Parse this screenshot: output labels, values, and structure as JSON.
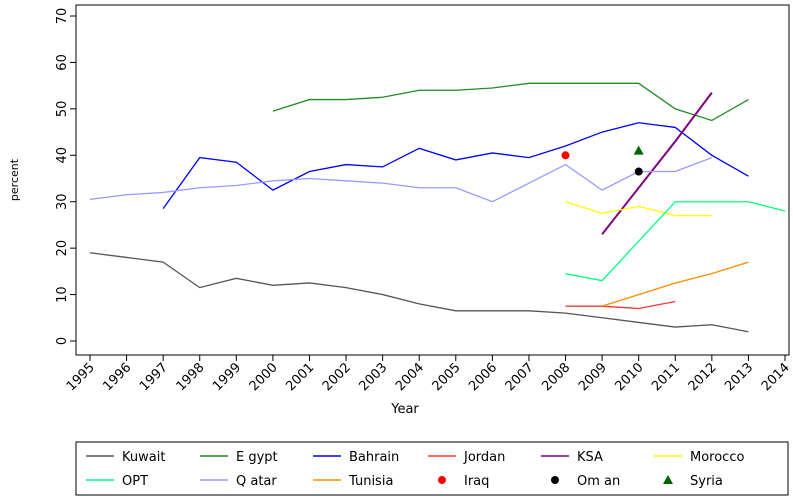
{
  "chart_data": {
    "type": "line",
    "x_label": "Year",
    "y_label": "percent",
    "x": [
      1995,
      1996,
      1997,
      1998,
      1999,
      2000,
      2001,
      2002,
      2003,
      2004,
      2005,
      2006,
      2007,
      2008,
      2009,
      2010,
      2011,
      2012,
      2013,
      2014
    ],
    "xlim": [
      1995,
      2014
    ],
    "xticks": [
      1995,
      1996,
      1997,
      1998,
      1999,
      2000,
      2001,
      2002,
      2003,
      2004,
      2005,
      2006,
      2007,
      2008,
      2009,
      2010,
      2011,
      2012,
      2013,
      2014
    ],
    "ylim": [
      0,
      70
    ],
    "yticks": [
      0,
      10,
      20,
      30,
      40,
      50,
      60,
      70
    ],
    "series": [
      {
        "name": "Kuwait",
        "color": "#555555",
        "marker": "line",
        "values": [
          19,
          18,
          17,
          11.5,
          13.5,
          12,
          12.5,
          11.5,
          10,
          8,
          6.5,
          6.5,
          6.5,
          6,
          5,
          4,
          3,
          3.5,
          2,
          null
        ]
      },
      {
        "name": "E gypt",
        "color": "#228b22",
        "marker": "line",
        "values": [
          null,
          null,
          null,
          null,
          null,
          49.5,
          52,
          52,
          52.5,
          54,
          54,
          54.5,
          55.5,
          55.5,
          55.5,
          55.5,
          50,
          47.5,
          52,
          null
        ]
      },
      {
        "name": "Bahrain",
        "color": "#0000ff",
        "marker": "line",
        "values": [
          null,
          null,
          28.5,
          39.5,
          38.5,
          32.5,
          36.5,
          38,
          37.5,
          41.5,
          39,
          40.5,
          39.5,
          42,
          45,
          47,
          46,
          40,
          35.5,
          null
        ]
      },
      {
        "name": "Jordan",
        "color": "#ff3333",
        "marker": "line",
        "values": [
          null,
          null,
          null,
          null,
          null,
          null,
          null,
          null,
          null,
          null,
          null,
          null,
          null,
          7.5,
          7.5,
          7,
          8.5,
          null,
          null,
          null
        ]
      },
      {
        "name": "KSA",
        "color": "#800080",
        "marker": "line",
        "values": [
          null,
          null,
          null,
          null,
          null,
          null,
          null,
          null,
          null,
          null,
          null,
          null,
          null,
          null,
          23,
          33,
          43,
          53.5,
          null,
          null
        ]
      },
      {
        "name": "Morocco",
        "color": "#ffff00",
        "marker": "line",
        "values": [
          null,
          null,
          null,
          null,
          null,
          null,
          null,
          null,
          null,
          null,
          null,
          null,
          null,
          30,
          27.5,
          29,
          27,
          27,
          null,
          null
        ]
      },
      {
        "name": "OPT",
        "color": "#00ff7f",
        "marker": "line",
        "values": [
          null,
          null,
          null,
          null,
          null,
          null,
          null,
          null,
          null,
          null,
          null,
          null,
          null,
          14.5,
          13,
          21.5,
          30,
          30,
          30,
          28
        ]
      },
      {
        "name": "Q atar",
        "color": "#9999ff",
        "marker": "line",
        "values": [
          30.5,
          31.5,
          32,
          33,
          33.5,
          34.5,
          35,
          34.5,
          34,
          33,
          33,
          30,
          34,
          38,
          32.5,
          36.5,
          36.5,
          39.5,
          null,
          null
        ]
      },
      {
        "name": "Tunisia",
        "color": "#ff8c00",
        "marker": "line",
        "values": [
          null,
          null,
          null,
          null,
          null,
          null,
          null,
          null,
          null,
          null,
          null,
          null,
          null,
          null,
          7.5,
          10,
          12.5,
          14.5,
          17,
          null
        ]
      },
      {
        "name": "Iraq",
        "color": "#ff0000",
        "marker": "circle",
        "values": [
          null,
          null,
          null,
          null,
          null,
          null,
          null,
          null,
          null,
          null,
          null,
          null,
          null,
          40,
          null,
          null,
          null,
          null,
          null,
          null
        ]
      },
      {
        "name": "Om an",
        "color": "#000000",
        "marker": "circle",
        "values": [
          null,
          null,
          null,
          null,
          null,
          null,
          null,
          null,
          null,
          null,
          null,
          null,
          null,
          null,
          null,
          36.5,
          null,
          null,
          null,
          null
        ]
      },
      {
        "name": "Syria",
        "color": "#006400",
        "marker": "triangle",
        "values": [
          null,
          null,
          null,
          null,
          null,
          null,
          null,
          null,
          null,
          null,
          null,
          null,
          null,
          null,
          null,
          41,
          null,
          null,
          null,
          null
        ]
      }
    ]
  }
}
